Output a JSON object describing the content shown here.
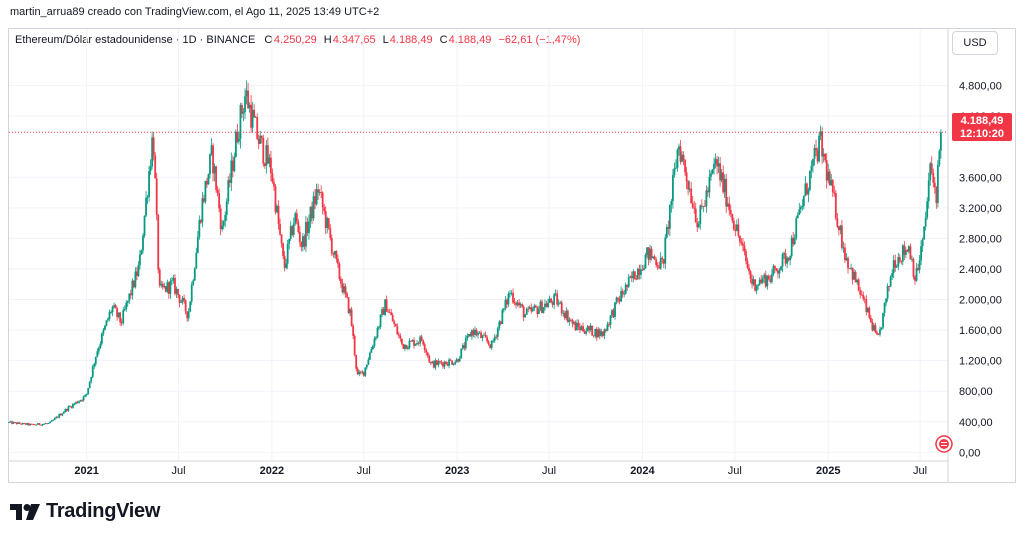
{
  "header": {
    "caption": "martin_arrua89 creado con TradingView.com, el Ago 11, 2025 13:49 UTC+2"
  },
  "legend": {
    "symbol": "Ethereum/Dólar estadounidense · 1D · BINANCE",
    "o_label": "O",
    "o_value": "4.250,29",
    "h_label": "H",
    "h_value": "4.347,65",
    "l_label": "L",
    "l_value": "4.188,49",
    "c_label": "C",
    "c_value": "4.188,49",
    "change": "−62,61 (−1,47%)"
  },
  "currency_button": "USD",
  "price_badge": {
    "price": "4.188,49",
    "countdown": "12:10:20"
  },
  "footer": {
    "brand": "TradingView"
  },
  "colors": {
    "up": "#089981",
    "down": "#f23645",
    "grid": "#f0f3fa",
    "text": "#131722"
  },
  "chart_data": {
    "type": "candlestick",
    "symbol": "ETH/USD",
    "interval": "1D",
    "exchange": "BINANCE",
    "last_price": 4188.49,
    "ylim": [
      -100,
      5200
    ],
    "y_ticks": [
      0,
      400,
      800,
      1200,
      1600,
      2000,
      2400,
      2800,
      3200,
      3600,
      4400,
      4800
    ],
    "y_tick_labels": [
      "0,00",
      "400,00",
      "800,00",
      "1.200,00",
      "1.600,00",
      "2.000,00",
      "2.400,00",
      "2.800,00",
      "3.200,00",
      "3.600,00",
      "4.400,00",
      "4.800,00"
    ],
    "x_range": [
      "2020-08-01",
      "2025-08-25"
    ],
    "x_ticks": [
      {
        "date": "2021-01-01",
        "label": "2021",
        "bold": true
      },
      {
        "date": "2021-07-01",
        "label": "Jul",
        "bold": false
      },
      {
        "date": "2022-01-01",
        "label": "2022",
        "bold": true
      },
      {
        "date": "2022-07-01",
        "label": "Jul",
        "bold": false
      },
      {
        "date": "2023-01-01",
        "label": "2023",
        "bold": true
      },
      {
        "date": "2023-07-01",
        "label": "Jul",
        "bold": false
      },
      {
        "date": "2024-01-01",
        "label": "2024",
        "bold": true
      },
      {
        "date": "2024-07-01",
        "label": "Jul",
        "bold": false
      },
      {
        "date": "2025-01-01",
        "label": "2025",
        "bold": true
      },
      {
        "date": "2025-07-01",
        "label": "Jul",
        "bold": false
      }
    ],
    "price_path": [
      [
        "2020-08-01",
        390
      ],
      [
        "2020-09-15",
        360
      ],
      [
        "2020-10-20",
        380
      ],
      [
        "2020-11-25",
        580
      ],
      [
        "2020-12-31",
        740
      ],
      [
        "2021-01-20",
        1300
      ],
      [
        "2021-02-20",
        1900
      ],
      [
        "2021-03-10",
        1700
      ],
      [
        "2021-04-15",
        2450
      ],
      [
        "2021-05-12",
        4200
      ],
      [
        "2021-05-24",
        2100
      ],
      [
        "2021-06-20",
        2200
      ],
      [
        "2021-07-20",
        1800
      ],
      [
        "2021-08-15",
        3200
      ],
      [
        "2021-09-05",
        3900
      ],
      [
        "2021-09-25",
        2900
      ],
      [
        "2021-10-25",
        4200
      ],
      [
        "2021-11-10",
        4700
      ],
      [
        "2021-12-05",
        4100
      ],
      [
        "2021-12-31",
        3700
      ],
      [
        "2022-01-25",
        2400
      ],
      [
        "2022-02-15",
        3100
      ],
      [
        "2022-03-01",
        2700
      ],
      [
        "2022-04-02",
        3450
      ],
      [
        "2022-05-10",
        2400
      ],
      [
        "2022-06-05",
        1800
      ],
      [
        "2022-06-18",
        1000
      ],
      [
        "2022-07-01",
        1050
      ],
      [
        "2022-08-13",
        1950
      ],
      [
        "2022-09-15",
        1400
      ],
      [
        "2022-10-25",
        1480
      ],
      [
        "2022-11-10",
        1150
      ],
      [
        "2022-12-31",
        1200
      ],
      [
        "2023-01-31",
        1600
      ],
      [
        "2023-03-10",
        1400
      ],
      [
        "2023-04-15",
        2100
      ],
      [
        "2023-05-15",
        1800
      ],
      [
        "2023-07-14",
        2000
      ],
      [
        "2023-08-20",
        1650
      ],
      [
        "2023-10-15",
        1550
      ],
      [
        "2023-11-15",
        2000
      ],
      [
        "2024-01-12",
        2600
      ],
      [
        "2024-02-10",
        2450
      ],
      [
        "2024-03-12",
        4050
      ],
      [
        "2024-04-20",
        3000
      ],
      [
        "2024-05-25",
        3800
      ],
      [
        "2024-07-05",
        2900
      ],
      [
        "2024-08-05",
        2200
      ],
      [
        "2024-09-10",
        2300
      ],
      [
        "2024-10-15",
        2600
      ],
      [
        "2024-11-25",
        3600
      ],
      [
        "2024-12-16",
        4050
      ],
      [
        "2025-01-15",
        3200
      ],
      [
        "2025-02-03",
        2600
      ],
      [
        "2025-03-10",
        2000
      ],
      [
        "2025-04-09",
        1450
      ],
      [
        "2025-05-10",
        2500
      ],
      [
        "2025-06-10",
        2700
      ],
      [
        "2025-06-22",
        2250
      ],
      [
        "2025-07-10",
        2900
      ],
      [
        "2025-07-20",
        3700
      ],
      [
        "2025-08-02",
        3400
      ],
      [
        "2025-08-11",
        4188.49
      ]
    ]
  }
}
